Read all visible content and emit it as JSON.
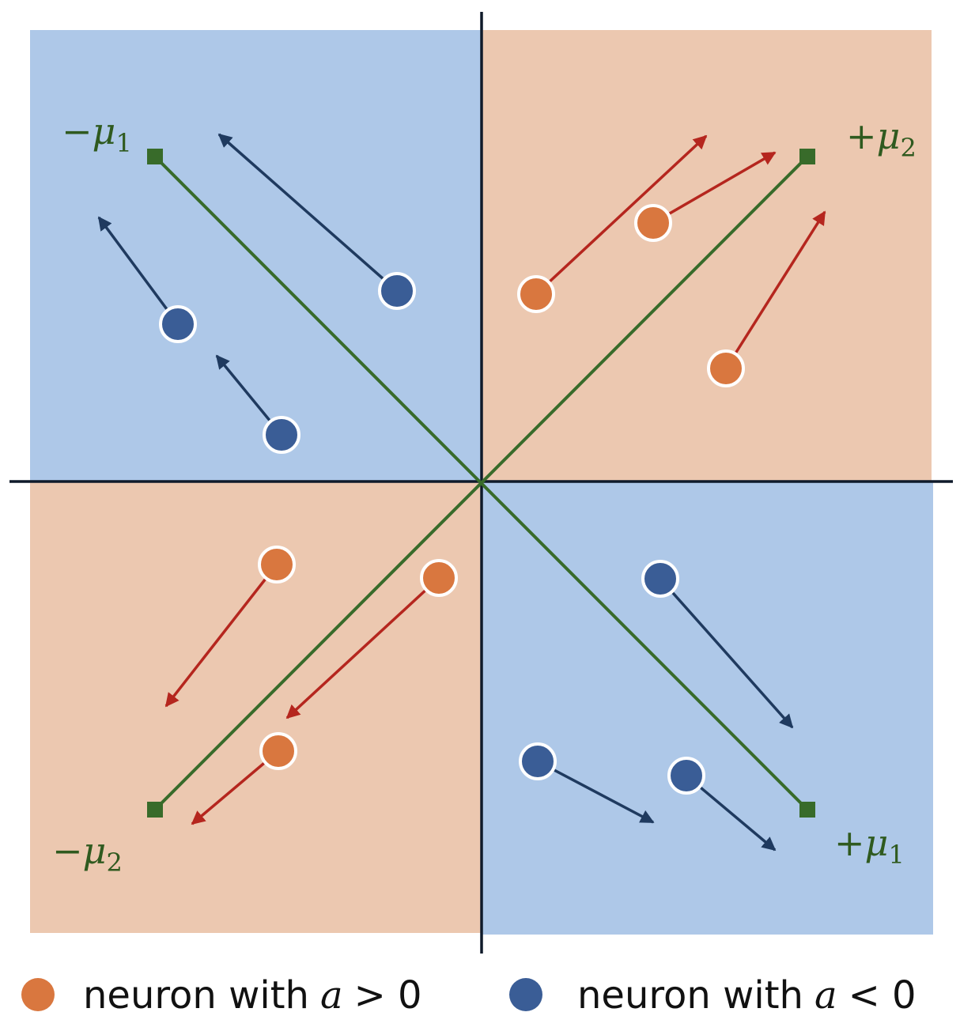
{
  "labels": [
    {
      "sign": "−",
      "symbol": "μ",
      "index": "1"
    },
    {
      "sign": "+",
      "symbol": "μ",
      "index": "2"
    },
    {
      "sign": "−",
      "symbol": "μ",
      "index": "2"
    },
    {
      "sign": "+",
      "symbol": "μ",
      "index": "1"
    }
  ],
  "legend": [
    {
      "text": "neuron with",
      "variable": "a",
      "relation": "> 0"
    },
    {
      "text": "neuron with",
      "variable": "a",
      "relation": "< 0"
    }
  ]
}
